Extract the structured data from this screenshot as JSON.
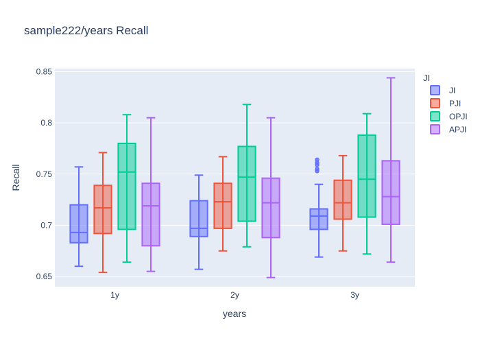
{
  "chart_data": {
    "type": "box",
    "title": "sample222/years Recall",
    "xlabel": "years",
    "ylabel": "Recall",
    "categories": [
      "1y",
      "2y",
      "3y"
    ],
    "ylim": [
      0.64,
      0.853
    ],
    "yticks": [
      0.65,
      0.7,
      0.75,
      0.8,
      0.85
    ],
    "ytick_labels": [
      "0.65",
      "0.7",
      "0.75",
      "0.8",
      "0.85"
    ],
    "grid": true,
    "legend": {
      "title": "JI",
      "placement": "right"
    },
    "series": [
      {
        "name": "JI",
        "color": "#636efa",
        "boxes": [
          {
            "category": "1y",
            "min": 0.66,
            "q1": 0.683,
            "median": 0.693,
            "q3": 0.72,
            "max": 0.757,
            "outliers": []
          },
          {
            "category": "2y",
            "min": 0.657,
            "q1": 0.689,
            "median": 0.697,
            "q3": 0.724,
            "max": 0.749,
            "outliers": []
          },
          {
            "category": "3y",
            "min": 0.669,
            "q1": 0.696,
            "median": 0.709,
            "q3": 0.716,
            "max": 0.74,
            "outliers": [
              0.753,
              0.755,
              0.759,
              0.761,
              0.764
            ]
          }
        ]
      },
      {
        "name": "PJI",
        "color": "#ef553b",
        "boxes": [
          {
            "category": "1y",
            "min": 0.654,
            "q1": 0.692,
            "median": 0.717,
            "q3": 0.739,
            "max": 0.771,
            "outliers": []
          },
          {
            "category": "2y",
            "min": 0.675,
            "q1": 0.697,
            "median": 0.723,
            "q3": 0.741,
            "max": 0.767,
            "outliers": []
          },
          {
            "category": "3y",
            "min": 0.675,
            "q1": 0.706,
            "median": 0.722,
            "q3": 0.744,
            "max": 0.768,
            "outliers": []
          }
        ]
      },
      {
        "name": "OPJI",
        "color": "#00cc96",
        "boxes": [
          {
            "category": "1y",
            "min": 0.664,
            "q1": 0.696,
            "median": 0.752,
            "q3": 0.78,
            "max": 0.808,
            "outliers": []
          },
          {
            "category": "2y",
            "min": 0.679,
            "q1": 0.704,
            "median": 0.747,
            "q3": 0.777,
            "max": 0.818,
            "outliers": []
          },
          {
            "category": "3y",
            "min": 0.672,
            "q1": 0.708,
            "median": 0.745,
            "q3": 0.788,
            "max": 0.809,
            "outliers": []
          }
        ]
      },
      {
        "name": "APJI",
        "color": "#ab63fa",
        "boxes": [
          {
            "category": "1y",
            "min": 0.655,
            "q1": 0.68,
            "median": 0.719,
            "q3": 0.741,
            "max": 0.805,
            "outliers": []
          },
          {
            "category": "2y",
            "min": 0.649,
            "q1": 0.688,
            "median": 0.722,
            "q3": 0.746,
            "max": 0.805,
            "outliers": []
          },
          {
            "category": "3y",
            "min": 0.664,
            "q1": 0.701,
            "median": 0.728,
            "q3": 0.763,
            "max": 0.844,
            "outliers": []
          }
        ]
      }
    ]
  }
}
